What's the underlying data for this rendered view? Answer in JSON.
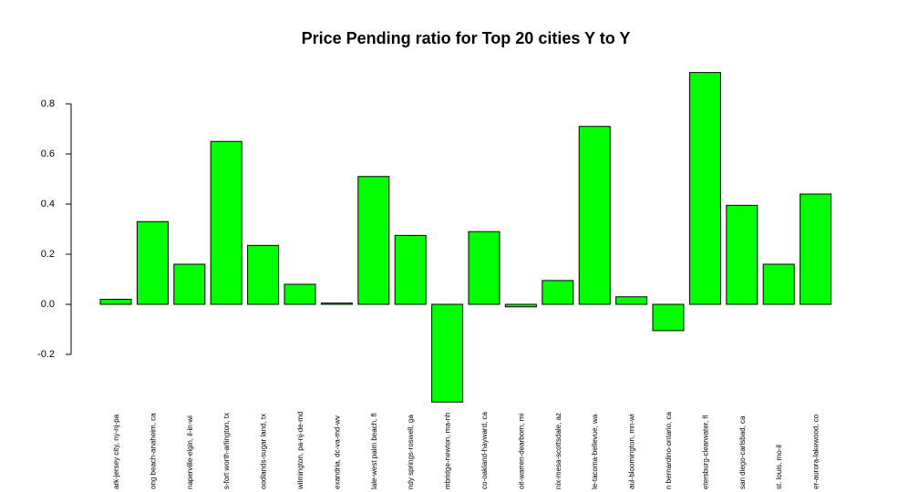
{
  "chart_data": {
    "type": "bar",
    "title": "Price Pending ratio for Top 20 cities Y to Y",
    "xlabel": "",
    "ylabel": "",
    "ylim": [
      -0.4,
      0.93
    ],
    "yticks": [
      -0.2,
      0.0,
      0.2,
      0.4,
      0.6,
      0.8
    ],
    "ytick_labels": [
      "-0.2",
      "0.0",
      "0.2",
      "0.4",
      "0.6",
      "0.8"
    ],
    "grid": false,
    "bar_color": "#00ff00",
    "categories": [
      "ark-jersey city, ny-nj-pa",
      "ong beach-anaheim, ca",
      "naperville-elgin, il-in-wi",
      "s-fort worth-arlington, tx",
      "oodlands-sugar land, tx",
      "wilmington, pa-nj-de-md",
      "exandria, dc-va-md-wv",
      "lale-west palm beach, fl",
      "ndy springs-roswell, ga",
      "mbridge-newton, ma-nh",
      "co-oakland-hayward, ca",
      "oit-warren-dearborn, mi",
      "nix-mesa-scottsdale, az",
      "le-tacoma-bellevue, wa",
      "aul-bloomington, mn-wi",
      "n bernardino-ontario, ca",
      "etersburg-clearwater, fl",
      "san diego-carlsbad, ca",
      "st. louis, mo-il",
      "er-aurora-lakewood, co"
    ],
    "values": [
      0.02,
      0.33,
      0.16,
      0.65,
      0.235,
      0.08,
      0.005,
      0.51,
      0.275,
      -0.39,
      0.29,
      -0.01,
      0.095,
      0.71,
      0.03,
      -0.105,
      0.925,
      0.395,
      0.16,
      0.44
    ]
  }
}
